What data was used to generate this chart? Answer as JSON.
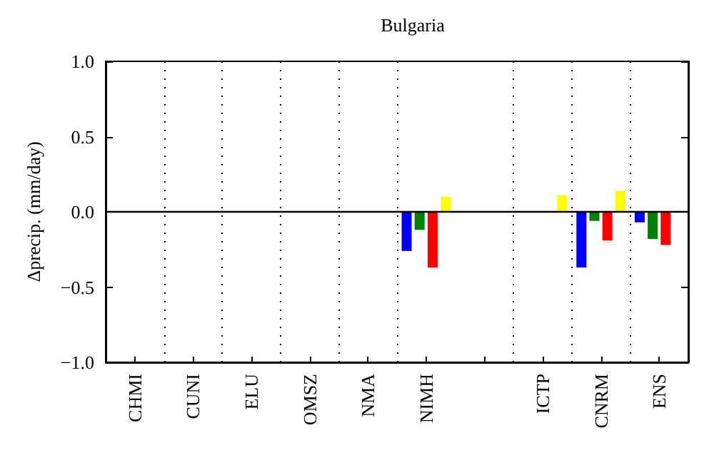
{
  "chart_data": {
    "type": "bar",
    "title": "Bulgaria",
    "ylabel": "Δprecip. (mm/day)",
    "categories": [
      "CHMI",
      "CUNI",
      "ELU",
      "OMSZ",
      "NMA",
      "NIMH",
      null,
      "ICTP",
      "CNRM",
      "ENS"
    ],
    "series": [
      {
        "color": "#0000ff",
        "values": [
          null,
          null,
          null,
          null,
          null,
          -0.26,
          null,
          null,
          -0.37,
          -0.07
        ]
      },
      {
        "color": "#008000",
        "values": [
          null,
          null,
          null,
          null,
          null,
          -0.12,
          null,
          null,
          -0.06,
          -0.18
        ]
      },
      {
        "color": "#ff0000",
        "values": [
          null,
          null,
          null,
          null,
          null,
          -0.37,
          null,
          null,
          -0.19,
          -0.22
        ]
      },
      {
        "color": "#ffff00",
        "values": [
          null,
          null,
          null,
          null,
          null,
          0.1,
          null,
          0.11,
          0.14,
          null
        ]
      }
    ],
    "ylim": [
      -1,
      1
    ],
    "yticks": [
      {
        "value": -1,
        "label": "−1.0"
      },
      {
        "value": -0.5,
        "label": "−0.5"
      },
      {
        "value": 0,
        "label": "0.0"
      },
      {
        "value": 0.5,
        "label": "0.5"
      },
      {
        "value": 1,
        "label": "1.0"
      }
    ],
    "ref_lines": [
      {
        "axis": "y",
        "value": 0,
        "color": "#000000"
      }
    ],
    "grid": "x"
  }
}
